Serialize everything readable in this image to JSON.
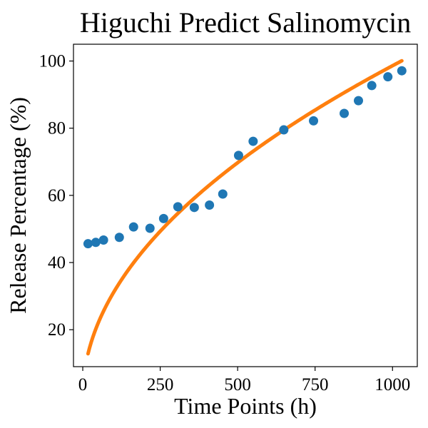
{
  "chart_data": {
    "type": "scatter",
    "title": "Higuchi Predict Salinomycin",
    "xlabel": "Time Points (h)",
    "ylabel": "Release Percentage (%)",
    "xlim": [
      -30,
      1080
    ],
    "ylim": [
      9,
      105
    ],
    "xticks": [
      0,
      250,
      500,
      750,
      1000
    ],
    "yticks": [
      20,
      40,
      60,
      80,
      100
    ],
    "grid": false,
    "series": [
      {
        "kind": "scatter",
        "color": "#1f77b4",
        "points": [
          [
            17,
            45.6
          ],
          [
            42,
            46.0
          ],
          [
            67,
            46.7
          ],
          [
            118,
            47.5
          ],
          [
            164,
            50.6
          ],
          [
            217,
            50.2
          ],
          [
            261,
            53.1
          ],
          [
            307,
            56.6
          ],
          [
            360,
            56.4
          ],
          [
            409,
            57.1
          ],
          [
            452,
            60.4
          ],
          [
            503,
            71.9
          ],
          [
            550,
            76.1
          ],
          [
            649,
            79.5
          ],
          [
            745,
            82.2
          ],
          [
            844,
            84.4
          ],
          [
            890,
            88.2
          ],
          [
            933,
            92.7
          ],
          [
            985,
            95.3
          ],
          [
            1030,
            97.1
          ]
        ]
      },
      {
        "kind": "line",
        "color": "#ff7f0e",
        "model": "higuchi",
        "k": 3.118,
        "x_range": [
          17,
          1030
        ],
        "y_range": [
          12.9,
          100.1
        ]
      }
    ]
  }
}
